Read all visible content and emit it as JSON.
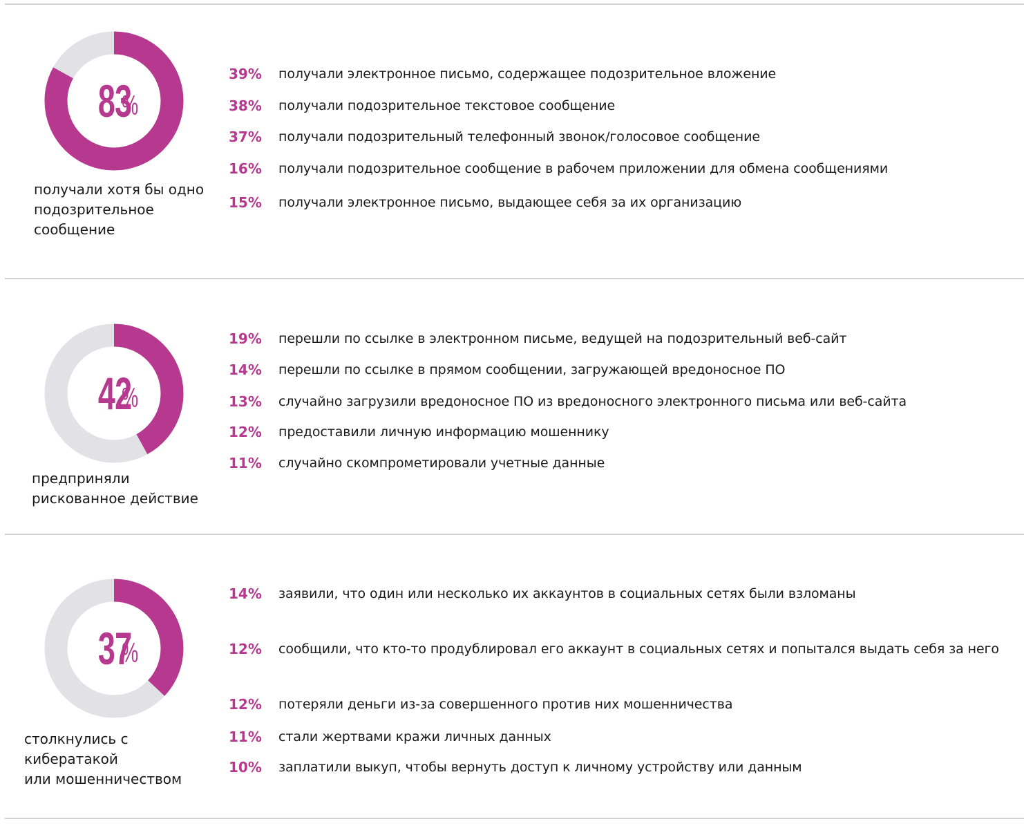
{
  "colors": {
    "accent": "#b7398f",
    "ring_background": "#e2e1e6",
    "divider": "#d4d4d4",
    "text": "#1a1a1a"
  },
  "chart_data": [
    {
      "type": "pie",
      "value": 83,
      "display_number": "83",
      "display_unit": "%",
      "caption": "получали хотя бы одно\nподозрительное\nсообщение",
      "items": [
        {
          "value": 39,
          "pct": "39%",
          "label": "получали электронное письмо, содержащее подозрительное вложение"
        },
        {
          "value": 38,
          "pct": "38%",
          "label": "получали подозрительное текстовое сообщение"
        },
        {
          "value": 37,
          "pct": "37%",
          "label": "получали подозрительный телефонный звонок/голосовое сообщение"
        },
        {
          "value": 16,
          "pct": "16%",
          "label": "получали подозрительное сообщение в рабочем приложении для обмена сообщениями"
        },
        {
          "value": 15,
          "pct": "15%",
          "label": "получали электронное письмо, выдающее себя за их организацию"
        }
      ]
    },
    {
      "type": "pie",
      "value": 42,
      "display_number": "42",
      "display_unit": "%",
      "caption": "предприняли\nрискованное действие",
      "items": [
        {
          "value": 19,
          "pct": "19%",
          "label": "перешли по ссылке в электронном письме, ведущей на подозрительный веб-сайт"
        },
        {
          "value": 14,
          "pct": "14%",
          "label": "перешли по ссылке в прямом сообщении, загружающей вредоносное ПО"
        },
        {
          "value": 13,
          "pct": "13%",
          "label": "случайно загрузили вредоносное ПО из вредоносного электронного письма или веб-сайта"
        },
        {
          "value": 12,
          "pct": "12%",
          "label": "предоставили личную информацию мошеннику"
        },
        {
          "value": 11,
          "pct": "11%",
          "label": "случайно скомпрометировали учетные данные"
        }
      ]
    },
    {
      "type": "pie",
      "value": 37,
      "display_number": "37",
      "display_unit": "%",
      "caption": "столкнулись с кибератакой\nили мошенничеством",
      "items": [
        {
          "value": 14,
          "pct": "14%",
          "label": "заявили, что один или несколько их аккаунтов в социальных сетях были взломаны"
        },
        {
          "value": 12,
          "pct": "12%",
          "label": "сообщили, что кто-то продублировал его аккаунт в социальных сетях и попытался выдать себя за него"
        },
        {
          "value": 12,
          "pct": "12%",
          "label": "потеряли деньги из-за совершенного против них мошенничества"
        },
        {
          "value": 11,
          "pct": "11%",
          "label": "стали жертвами кражи личных данных"
        },
        {
          "value": 10,
          "pct": "10%",
          "label": "заплатили выкуп, чтобы вернуть доступ к личному устройству или данным"
        }
      ]
    }
  ]
}
